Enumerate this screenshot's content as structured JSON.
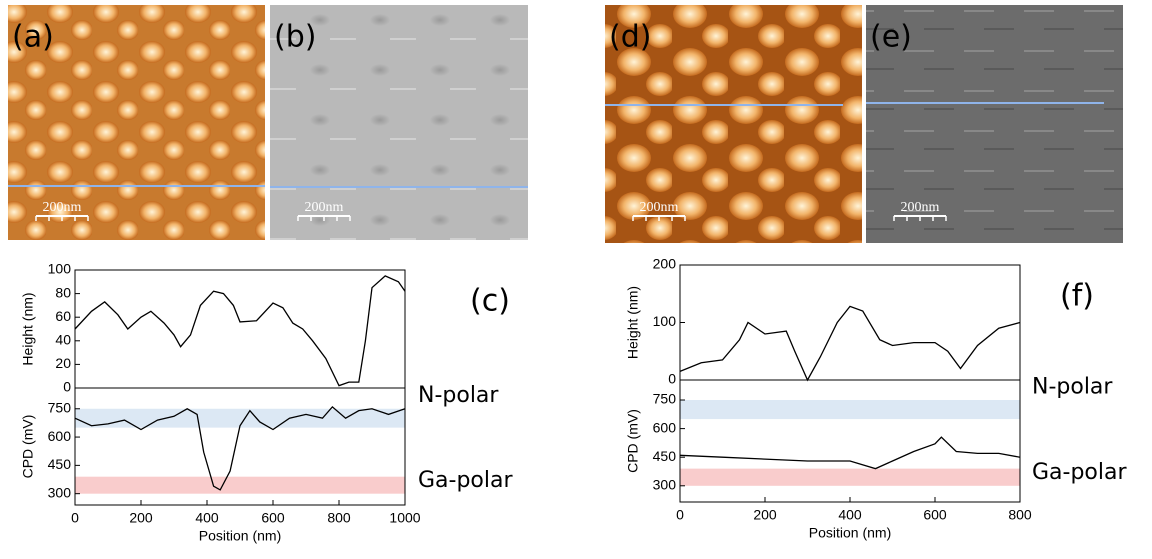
{
  "panels": [
    {
      "label": "(a)",
      "scale_bar": "200nm"
    },
    {
      "label": "(b)",
      "scale_bar": "200nm"
    },
    {
      "label": "(d)",
      "scale_bar": "200nm"
    },
    {
      "label": "(e)",
      "scale_bar": "200nm"
    }
  ],
  "chart_data": [
    {
      "type": "line",
      "ylabel": "Height (nm)",
      "annotation": "(c)",
      "color": "#000000",
      "x": [
        0,
        50,
        90,
        130,
        160,
        200,
        230,
        270,
        300,
        320,
        350,
        380,
        420,
        450,
        480,
        500,
        550,
        600,
        630,
        660,
        690,
        720,
        760,
        800,
        830,
        860,
        880,
        900,
        940,
        980,
        1000
      ],
      "values": [
        50,
        65,
        73,
        62,
        50,
        60,
        65,
        55,
        45,
        35,
        45,
        70,
        82,
        80,
        70,
        56,
        57,
        72,
        68,
        55,
        50,
        40,
        25,
        2,
        5,
        5,
        40,
        85,
        95,
        90,
        82
      ],
      "xlim": [
        0,
        1000
      ],
      "ylim": [
        0,
        100
      ],
      "yticks": [
        0,
        20,
        40,
        60,
        80,
        100
      ]
    },
    {
      "type": "line",
      "ylabel": "CPD (mV)",
      "xlabel": "Position (nm)",
      "color": "#000000",
      "x": [
        0,
        50,
        100,
        150,
        200,
        250,
        300,
        340,
        370,
        390,
        420,
        440,
        470,
        500,
        530,
        560,
        600,
        650,
        700,
        750,
        780,
        820,
        860,
        900,
        950,
        1000
      ],
      "values": [
        700,
        660,
        670,
        690,
        640,
        690,
        710,
        750,
        720,
        520,
        340,
        320,
        420,
        660,
        740,
        680,
        640,
        700,
        720,
        700,
        760,
        700,
        740,
        750,
        720,
        750
      ],
      "xlim": [
        0,
        1000
      ],
      "xticks": [
        0,
        200,
        400,
        600,
        800,
        1000
      ],
      "ylim": [
        240,
        860
      ],
      "yticks": [
        300,
        450,
        600,
        750
      ],
      "bands": [
        {
          "range": [
            650,
            750
          ],
          "color": "#dce8f4",
          "label": "N-polar"
        },
        {
          "range": [
            300,
            390
          ],
          "color": "#f9cccc",
          "label": "Ga-polar"
        }
      ]
    },
    {
      "type": "line",
      "ylabel": "Height (nm)",
      "annotation": "(f)",
      "color": "#000000",
      "x": [
        0,
        50,
        100,
        140,
        160,
        200,
        250,
        270,
        300,
        330,
        370,
        400,
        430,
        470,
        500,
        550,
        600,
        630,
        660,
        700,
        750,
        800
      ],
      "values": [
        15,
        30,
        35,
        70,
        100,
        80,
        85,
        50,
        0,
        40,
        100,
        128,
        120,
        70,
        60,
        65,
        65,
        50,
        20,
        60,
        90,
        100
      ],
      "xlim": [
        0,
        800
      ],
      "ylim": [
        0,
        200
      ],
      "yticks": [
        0,
        100,
        200
      ]
    },
    {
      "type": "line",
      "ylabel": "CPD (mV)",
      "xlabel": "Position (nm)",
      "color": "#000000",
      "x": [
        0,
        100,
        200,
        300,
        400,
        460,
        500,
        550,
        600,
        615,
        650,
        700,
        750,
        800
      ],
      "values": [
        460,
        450,
        440,
        430,
        430,
        390,
        430,
        480,
        520,
        555,
        480,
        470,
        470,
        450
      ],
      "xlim": [
        0,
        800
      ],
      "xticks": [
        0,
        200,
        400,
        600,
        800
      ],
      "ylim": [
        215,
        855
      ],
      "yticks": [
        300,
        450,
        600,
        750
      ],
      "bands": [
        {
          "range": [
            650,
            750
          ],
          "color": "#dce8f4",
          "label": "N-polar"
        },
        {
          "range": [
            300,
            390
          ],
          "color": "#f9cccc",
          "label": "Ga-polar"
        }
      ]
    }
  ]
}
